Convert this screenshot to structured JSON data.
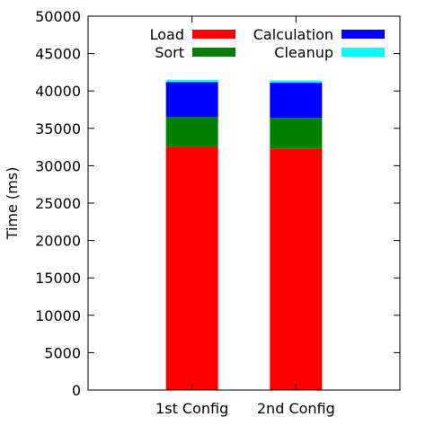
{
  "chart_data": {
    "type": "bar",
    "stacked": true,
    "categories": [
      "1st Config",
      "2nd Config"
    ],
    "series": [
      {
        "name": "Load",
        "color": "#ff0000",
        "values": [
          32500,
          32300
        ]
      },
      {
        "name": "Sort",
        "color": "#008000",
        "values": [
          4000,
          4100
        ]
      },
      {
        "name": "Calculation",
        "color": "#0000ff",
        "values": [
          4700,
          4700
        ]
      },
      {
        "name": "Cleanup",
        "color": "#00ffff",
        "values": [
          300,
          300
        ]
      }
    ],
    "ylabel": "Time (ms)",
    "xlabel": "",
    "title": "",
    "ylim": [
      0,
      50000
    ],
    "yticks": [
      0,
      5000,
      10000,
      15000,
      20000,
      25000,
      30000,
      35000,
      40000,
      45000,
      50000
    ],
    "legend_position": "top-right",
    "grid": false
  }
}
